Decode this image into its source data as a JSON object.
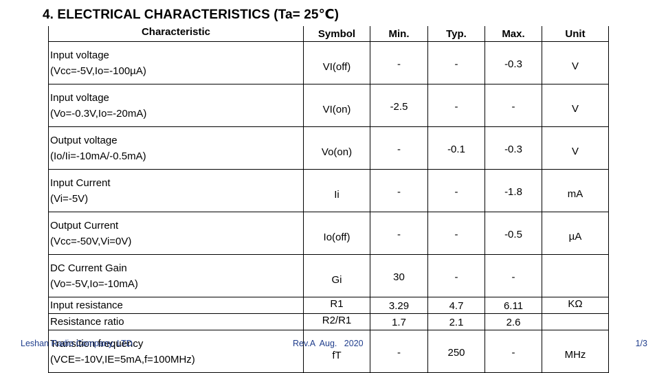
{
  "heading": "4. ELECTRICAL CHARACTERISTICS (Ta= 25℃)",
  "table": {
    "headers": {
      "characteristic": "Characteristic",
      "symbol": "Symbol",
      "min": "Min.",
      "typ": "Typ.",
      "max": "Max.",
      "unit": "Unit"
    },
    "rows": [
      {
        "name": "Input voltage",
        "condition": "(Vcc=-5V,Io=-100µA)",
        "symbol": "VI(off)",
        "min": "-",
        "typ": "-",
        "max": "-0.3",
        "unit": "V"
      },
      {
        "name": "Input voltage",
        "condition": "(Vo=-0.3V,Io=-20mA)",
        "symbol": "VI(on)",
        "min": "-2.5",
        "typ": "-",
        "max": "-",
        "unit": "V"
      },
      {
        "name": "Output voltage",
        "condition": "(Io/Ii=-10mA/-0.5mA)",
        "symbol": "Vo(on)",
        "min": "-",
        "typ": "-0.1",
        "max": "-0.3",
        "unit": "V"
      },
      {
        "name": "Input Current",
        "condition": "(Vi=-5V)",
        "symbol": "Ii",
        "min": "-",
        "typ": "-",
        "max": "-1.8",
        "unit": "mA"
      },
      {
        "name": "Output Current",
        "condition": "(Vcc=-50V,Vi=0V)",
        "symbol": "Io(off)",
        "min": "-",
        "typ": "-",
        "max": "-0.5",
        "unit": "µA"
      },
      {
        "name": "DC Current Gain",
        "condition": "(Vo=-5V,Io=-10mA)",
        "symbol": "Gi",
        "min": "30",
        "typ": "-",
        "max": "-",
        "unit": ""
      },
      {
        "name": "Input resistance",
        "condition": "",
        "symbol": "R1",
        "min": "3.29",
        "typ": "4.7",
        "max": "6.11",
        "unit": "KΩ"
      },
      {
        "name": "Resistance ratio",
        "condition": "",
        "symbol": "R2/R1",
        "min": "1.7",
        "typ": "2.1",
        "max": "2.6",
        "unit": ""
      },
      {
        "name": "Transition frequency",
        "condition": "(VCE=-10V,IE=5mA,f=100MHz)",
        "symbol": "fT",
        "min": "-",
        "typ": "250",
        "max": "-",
        "unit": "MHz"
      }
    ]
  },
  "footer": {
    "company": "Leshan Radio Company, LTD.",
    "revision": "Rev.A  Aug.   2020",
    "page": "1/3"
  },
  "colors": {
    "footer_text": "#1f3d8c"
  }
}
